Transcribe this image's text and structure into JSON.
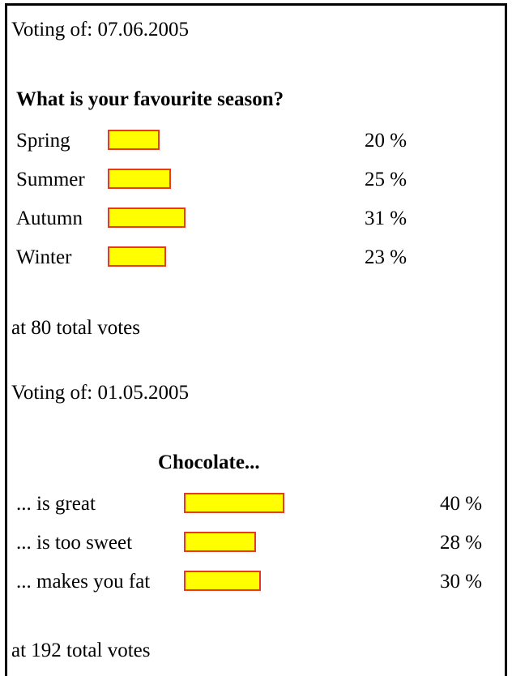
{
  "polls": [
    {
      "date_text": "Voting of: 07.06.2005",
      "question": "What is your favourite season?",
      "options": [
        {
          "label": "Spring",
          "percent_text": "20 %",
          "percent": 20
        },
        {
          "label": "Summer",
          "percent_text": "25 %",
          "percent": 25
        },
        {
          "label": "Autumn",
          "percent_text": "31 %",
          "percent": 31
        },
        {
          "label": "Winter",
          "percent_text": "23 %",
          "percent": 23
        }
      ],
      "total_text": "at 80 total votes"
    },
    {
      "date_text": "Voting of: 01.05.2005",
      "question": "Chocolate...",
      "options": [
        {
          "label": "... is great",
          "percent_text": "40 %",
          "percent": 40
        },
        {
          "label": "... is too sweet",
          "percent_text": "28 %",
          "percent": 28
        },
        {
          "label": "... makes you fat",
          "percent_text": "30 %",
          "percent": 30
        }
      ],
      "total_text": "at 192 total votes"
    }
  ],
  "colors": {
    "bar_fill": "#ffff00",
    "bar_border": "#e53a2a"
  }
}
